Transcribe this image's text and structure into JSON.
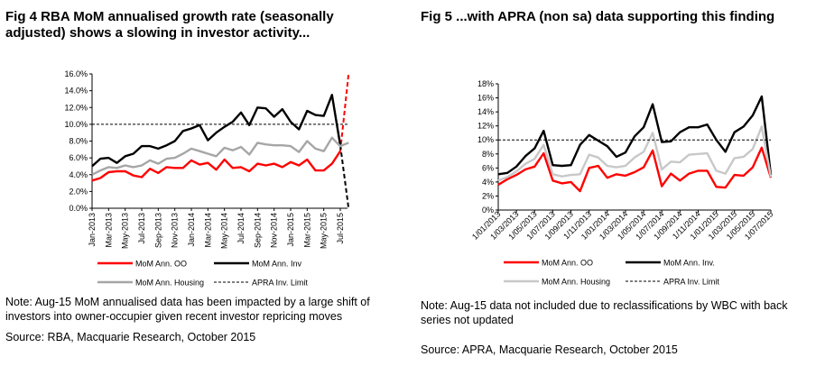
{
  "figures": [
    {
      "title": "Fig 4   RBA MoM annualised growth rate (seasonally adjusted) shows a slowing in investor activity...",
      "note": "Note: Aug-15 MoM annualised data has been impacted by a large shift of investors into owner-occupier given recent investor repricing moves",
      "source": "Source: RBA, Macquarie Research, October 2015"
    },
    {
      "title": "Fig 5   ...with APRA (non sa) data supporting this finding",
      "note": "Note: Aug-15 data not included due to reclassifications by WBC with back series not updated",
      "source": "Source: APRA, Macquarie Research, October 2015"
    }
  ],
  "chart_data": [
    {
      "type": "line",
      "ylim": [
        0,
        16
      ],
      "yticks": [
        "0.0%",
        "2.0%",
        "4.0%",
        "6.0%",
        "8.0%",
        "10.0%",
        "12.0%",
        "14.0%",
        "16.0%"
      ],
      "x": [
        "Jan-2013",
        "Feb-2013",
        "Mar-2013",
        "Apr-2013",
        "May-2013",
        "Jun-2013",
        "Jul-2013",
        "Aug-2013",
        "Sep-2013",
        "Oct-2013",
        "Nov-2013",
        "Dec-2013",
        "Jan-2014",
        "Feb-2014",
        "Mar-2014",
        "Apr-2014",
        "May-2014",
        "Jun-2014",
        "Jul-2014",
        "Aug-2014",
        "Sep-2014",
        "Oct-2014",
        "Nov-2014",
        "Dec-2014",
        "Jan-2015",
        "Feb-2015",
        "Mar-2015",
        "Apr-2015",
        "May-2015",
        "Jun-2015",
        "Jul-2015",
        "Aug-2015"
      ],
      "xtick_labels": [
        "Jan-2013",
        "Mar-2013",
        "May-2013",
        "Jul-2013",
        "Sep-2013",
        "Nov-2013",
        "Jan-2014",
        "Mar-2014",
        "May-2014",
        "Jul-2014",
        "Sep-2014",
        "Nov-2014",
        "Jan-2015",
        "Mar-2015",
        "May-2015",
        "Jul-2015"
      ],
      "series": [
        {
          "name": "MoM Ann. OO",
          "color": "#ff0000",
          "values": [
            3.3,
            3.6,
            4.3,
            4.4,
            4.4,
            3.9,
            3.7,
            4.7,
            4.2,
            4.9,
            4.8,
            4.8,
            5.7,
            5.2,
            5.4,
            4.6,
            5.8,
            4.8,
            4.9,
            4.4,
            5.3,
            5.1,
            5.3,
            4.9,
            5.5,
            5.1,
            5.8,
            4.5,
            4.5,
            5.3,
            6.8,
            16.0
          ],
          "last_point_dashed": true
        },
        {
          "name": "MoM Ann. Inv",
          "color": "#000000",
          "values": [
            5.0,
            5.9,
            6.0,
            5.4,
            6.2,
            6.5,
            7.4,
            7.4,
            7.1,
            7.5,
            8.0,
            9.2,
            9.5,
            9.9,
            8.1,
            9.0,
            9.7,
            10.3,
            11.4,
            9.9,
            12.0,
            11.9,
            10.9,
            11.8,
            10.3,
            9.4,
            11.6,
            11.1,
            11.0,
            13.5,
            7.5,
            0.0
          ],
          "last_point_dashed": true
        },
        {
          "name": "MoM Ann. Housing",
          "color": "#a6a6a6",
          "values": [
            4.0,
            4.5,
            4.9,
            4.8,
            5.1,
            4.9,
            5.1,
            5.7,
            5.3,
            5.9,
            6.0,
            6.5,
            7.1,
            6.8,
            6.5,
            6.2,
            7.2,
            6.9,
            7.3,
            6.4,
            7.8,
            7.6,
            7.5,
            7.5,
            7.4,
            6.7,
            8.0,
            7.1,
            6.8,
            8.4,
            7.4,
            7.8
          ]
        },
        {
          "name": "APRA Inv. Limit",
          "color": "#000000",
          "dashed": true,
          "constant": 10.0
        }
      ],
      "legend": "bottom"
    },
    {
      "type": "line",
      "ylim": [
        0,
        18
      ],
      "yticks": [
        "0%",
        "2%",
        "4%",
        "6%",
        "8%",
        "10%",
        "12%",
        "14%",
        "16%",
        "18%"
      ],
      "x": [
        "1/01/2013",
        "1/02/2013",
        "1/03/2013",
        "1/04/2013",
        "1/05/2013",
        "1/06/2013",
        "1/07/2013",
        "1/08/2013",
        "1/09/2013",
        "1/10/2013",
        "1/11/2013",
        "1/12/2013",
        "1/01/2014",
        "1/02/2014",
        "1/03/2014",
        "1/04/2014",
        "1/05/2014",
        "1/06/2014",
        "1/07/2014",
        "1/08/2014",
        "1/09/2014",
        "1/10/2014",
        "1/11/2014",
        "1/12/2014",
        "1/01/2015",
        "1/02/2015",
        "1/03/2015",
        "1/04/2015",
        "1/05/2015",
        "1/06/2015",
        "1/07/2015"
      ],
      "xtick_labels": [
        "1/01/2013",
        "1/03/2013",
        "1/05/2013",
        "1/07/2013",
        "1/09/2013",
        "1/11/2013",
        "1/01/2014",
        "1/03/2014",
        "1/05/2014",
        "1/07/2014",
        "1/09/2014",
        "1/11/2014",
        "1/01/2015",
        "1/03/2015",
        "1/05/2015",
        "1/07/2015"
      ],
      "series": [
        {
          "name": "MoM Ann. OO",
          "color": "#ff0000",
          "values": [
            3.6,
            4.4,
            5.0,
            5.8,
            6.2,
            8.1,
            4.2,
            3.8,
            4.0,
            2.7,
            6.0,
            6.3,
            4.6,
            5.1,
            4.9,
            5.4,
            6.1,
            8.5,
            3.4,
            5.2,
            4.2,
            5.2,
            5.6,
            5.6,
            3.3,
            3.2,
            5.0,
            4.9,
            6.1,
            8.9,
            4.6
          ]
        },
        {
          "name": "MoM Ann. Inv.",
          "color": "#000000",
          "values": [
            5.1,
            5.3,
            6.2,
            7.7,
            8.8,
            11.3,
            6.4,
            6.3,
            6.4,
            9.3,
            10.7,
            9.9,
            9.1,
            7.6,
            8.2,
            10.5,
            11.8,
            15.1,
            9.7,
            9.8,
            11.1,
            11.8,
            11.8,
            12.2,
            10.0,
            8.3,
            11.1,
            11.9,
            13.5,
            16.2,
            5.0
          ]
        },
        {
          "name": "MoM Ann. Housing",
          "color": "#c8c8c8",
          "values": [
            4.2,
            4.7,
            5.5,
            6.6,
            7.3,
            9.3,
            5.1,
            4.8,
            5.0,
            5.1,
            7.9,
            7.5,
            6.3,
            6.1,
            6.3,
            7.5,
            8.3,
            11.0,
            5.8,
            6.9,
            6.8,
            7.9,
            8.0,
            8.1,
            5.6,
            5.2,
            7.4,
            7.6,
            8.7,
            11.9,
            4.7
          ]
        },
        {
          "name": "APRA Inv. Limit",
          "color": "#000000",
          "dashed": true,
          "constant": 10.0
        }
      ],
      "legend": "bottom"
    }
  ]
}
